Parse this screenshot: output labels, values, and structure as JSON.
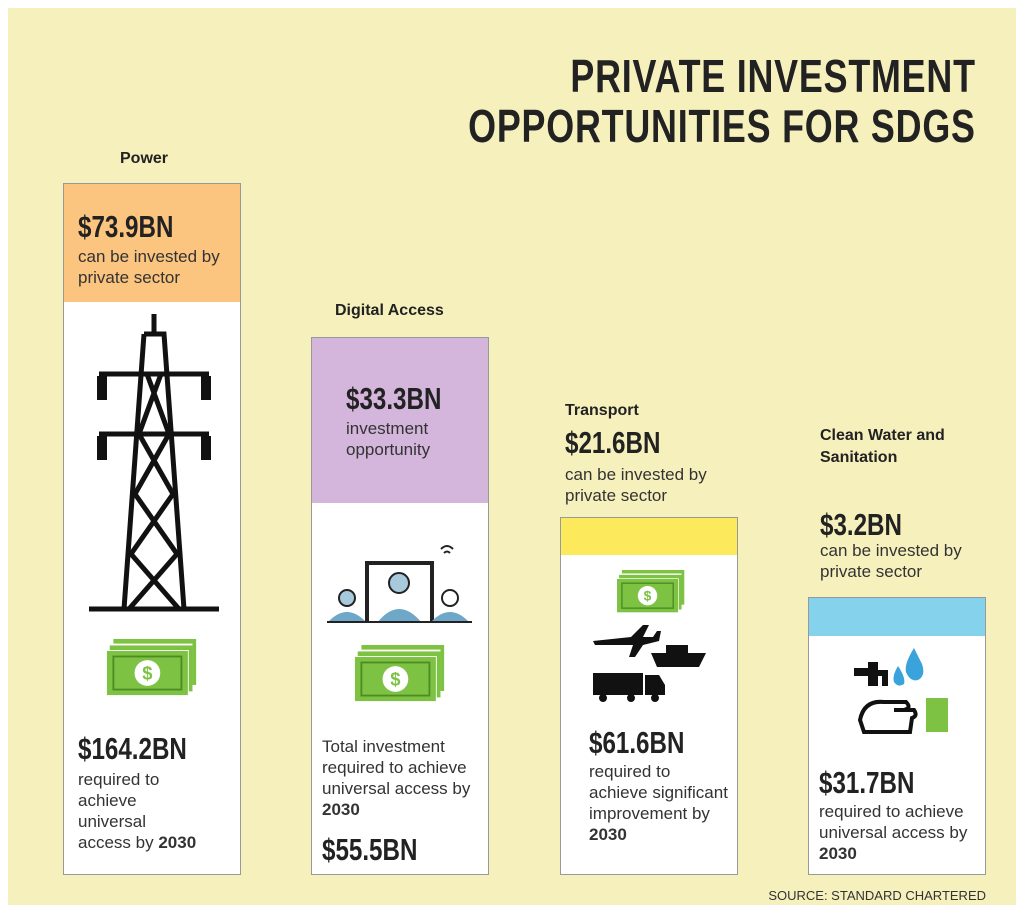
{
  "title": [
    "PRIVATE INVESTMENT",
    "OPPORTUNITIES FOR SDGS"
  ],
  "columns": [
    {
      "name": "Power",
      "amount": "$73.9BN",
      "amount_note": "can be invested by private sector",
      "total": "$164.2BN",
      "total_note": "required to achieve universal access by",
      "year": "2030"
    },
    {
      "name": "Digital Access",
      "amount": "$33.3BN",
      "amount_note": "investment opportunity",
      "total": "$55.5BN",
      "total_note": "Total investment required to achieve universal access by",
      "year": "2030"
    },
    {
      "name": "Transport",
      "amount": "$21.6BN",
      "amount_note": "can be invested by private sector",
      "total": "$61.6BN",
      "total_note": "required to achieve significant improvement by",
      "year": "2030"
    },
    {
      "name": "Clean Water and Sanitation",
      "amount": "$3.2BN",
      "amount_note": "can be invested by private sector",
      "total": "$31.7BN",
      "total_note": "required to achieve universal access by",
      "year": "2030"
    }
  ],
  "source": "SOURCE: STANDARD CHARTERED"
}
